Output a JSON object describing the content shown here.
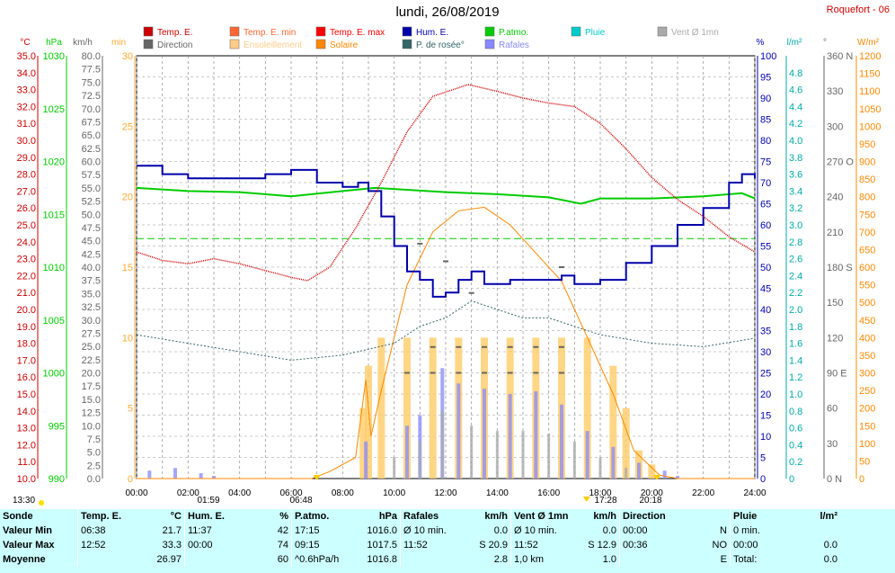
{
  "header": {
    "title": "lundi, 26/08/2019",
    "station": "Roquefort - 06"
  },
  "legend": [
    {
      "label": "Temp. E.",
      "color": "#cc0000"
    },
    {
      "label": "Temp. E. min",
      "color": "#ff6633"
    },
    {
      "label": "Temp. E. max",
      "color": "#ff0000"
    },
    {
      "label": "Hum. E.",
      "color": "#0000aa"
    },
    {
      "label": "P.atmo.",
      "color": "#00cc00"
    },
    {
      "label": "Pluie",
      "color": "#00cccc"
    },
    {
      "label": "Vent Ø 1mn",
      "color": "#aaaaaa"
    },
    {
      "label": "Direction",
      "color": "#666666"
    },
    {
      "label": "Ensoleillement",
      "color": "#ffcc88"
    },
    {
      "label": "Solaire",
      "color": "#ff8800"
    },
    {
      "label": "P. de rosée°",
      "color": "#336666"
    },
    {
      "label": "Rafales",
      "color": "#8888ff"
    }
  ],
  "axes_units": {
    "temp": "°C",
    "pressure": "hPa",
    "wind": "km/h",
    "sun_min": "min",
    "humidity": "%",
    "rain": "l/m²",
    "direction": "°",
    "solar": "W/m²"
  },
  "colors": {
    "temp": "#cc0000",
    "pressure": "#00cc00",
    "wind": "#888888",
    "sun_min": "#ffcc66",
    "humidity": "#0000aa",
    "rain": "#00cccc",
    "direction": "#666666",
    "solar": "#ff8800",
    "dew": "#336666",
    "gust": "#8888ff"
  },
  "sun_events": {
    "sunrise": "06:48",
    "sunset": "20:18",
    "noon": "13:30",
    "day_start": "01:59",
    "solar_noon": "17:28"
  },
  "chart_data": {
    "type": "line",
    "x_range_hours": [
      0,
      24
    ],
    "x_ticks": [
      "00:00",
      "02:00",
      "04:00",
      "06:00",
      "08:00",
      "10:00",
      "12:00",
      "14:00",
      "16:00",
      "18:00",
      "20:00",
      "22:00",
      "24:00"
    ],
    "ylim": {
      "temp": [
        10,
        35
      ],
      "pressure": [
        990,
        1030
      ],
      "wind": [
        0,
        80
      ],
      "sun_min": [
        0,
        30
      ],
      "humidity": [
        0,
        100
      ],
      "rain": [
        0,
        5
      ],
      "direction": [
        0,
        360
      ],
      "solar": [
        0,
        1200
      ]
    },
    "y_ticks": {
      "temp": [
        "10.0",
        "11.0",
        "12.0",
        "13.0",
        "14.0",
        "15.0",
        "16.0",
        "17.0",
        "18.0",
        "19.0",
        "20.0",
        "21.0",
        "22.0",
        "23.0",
        "24.0",
        "25.0",
        "26.0",
        "27.0",
        "28.0",
        "29.0",
        "30.0",
        "31.0",
        "32.0",
        "33.0",
        "34.0",
        "35.0"
      ],
      "pressure": [
        "990",
        "995",
        "1000",
        "1005",
        "1010",
        "1015",
        "1020",
        "1025",
        "1030"
      ],
      "wind": [
        "0.0",
        "2.5",
        "5.0",
        "7.5",
        "10.0",
        "12.5",
        "15.0",
        "17.5",
        "20.0",
        "22.5",
        "25.0",
        "27.5",
        "30.0",
        "32.5",
        "35.0",
        "37.5",
        "40.0",
        "42.5",
        "45.0",
        "47.5",
        "50.0",
        "52.5",
        "55.0",
        "57.5",
        "60.0",
        "62.5",
        "65.0",
        "67.5",
        "70.0",
        "72.5",
        "75.0",
        "77.5",
        "80.0"
      ],
      "sun_min": [
        "0",
        "5",
        "10",
        "15",
        "20",
        "25",
        "30"
      ],
      "humidity": [
        "0",
        "5",
        "10",
        "15",
        "20",
        "25",
        "30",
        "35",
        "40",
        "45",
        "50",
        "55",
        "60",
        "65",
        "70",
        "75",
        "80",
        "85",
        "90",
        "95",
        "100"
      ],
      "rain": [
        "0",
        "0.2",
        "0.4",
        "0.6",
        "0.8",
        "1.0",
        "1.2",
        "1.4",
        "1.6",
        "1.8",
        "2.0",
        "2.2",
        "2.4",
        "2.6",
        "2.8",
        "3.0",
        "3.2",
        "3.4",
        "3.6",
        "3.8",
        "4.0",
        "4.2",
        "4.4",
        "4.6",
        "4.8"
      ],
      "direction": [
        "0 N",
        "30",
        "60",
        "90 E",
        "120",
        "150",
        "180 S",
        "210",
        "240",
        "270 O",
        "300",
        "330",
        "360 N"
      ],
      "solar": [
        "0",
        "50",
        "100",
        "150",
        "200",
        "250",
        "300",
        "350",
        "400",
        "450",
        "500",
        "550",
        "600",
        "650",
        "700",
        "750",
        "800",
        "850",
        "900",
        "950",
        "1000",
        "1050",
        "1100",
        "1150",
        "1200"
      ]
    },
    "series": [
      {
        "name": "Temp. E.",
        "unit": "°C",
        "points": [
          [
            0,
            23.4
          ],
          [
            1,
            22.9
          ],
          [
            2,
            22.7
          ],
          [
            3,
            23.0
          ],
          [
            4,
            22.7
          ],
          [
            5,
            22.3
          ],
          [
            6,
            21.9
          ],
          [
            6.63,
            21.7
          ],
          [
            7.5,
            22.5
          ],
          [
            8.5,
            24.8
          ],
          [
            9.5,
            27.5
          ],
          [
            10.5,
            30.5
          ],
          [
            11.5,
            32.6
          ],
          [
            12.87,
            33.3
          ],
          [
            14,
            32.9
          ],
          [
            15,
            32.5
          ],
          [
            16,
            32.2
          ],
          [
            17,
            32.0
          ],
          [
            18,
            31.0
          ],
          [
            19,
            29.5
          ],
          [
            20,
            27.8
          ],
          [
            21,
            26.5
          ],
          [
            22,
            25.5
          ],
          [
            23,
            24.3
          ],
          [
            24,
            23.4
          ]
        ]
      },
      {
        "name": "Hum. E.",
        "unit": "%",
        "points": [
          [
            0,
            74
          ],
          [
            1,
            72
          ],
          [
            2,
            71
          ],
          [
            3,
            71
          ],
          [
            4,
            71
          ],
          [
            5,
            72
          ],
          [
            6,
            73
          ],
          [
            7,
            70
          ],
          [
            8,
            69
          ],
          [
            8.6,
            70
          ],
          [
            9,
            68
          ],
          [
            9.5,
            62
          ],
          [
            10,
            55
          ],
          [
            10.5,
            49
          ],
          [
            11,
            47
          ],
          [
            11.5,
            43
          ],
          [
            12,
            44
          ],
          [
            12.5,
            47
          ],
          [
            13,
            49
          ],
          [
            13.5,
            46
          ],
          [
            14,
            46
          ],
          [
            14.5,
            47
          ],
          [
            15,
            47
          ],
          [
            15.5,
            47
          ],
          [
            16,
            47
          ],
          [
            16.5,
            48
          ],
          [
            17,
            46
          ],
          [
            17.5,
            46
          ],
          [
            18,
            47
          ],
          [
            19,
            51
          ],
          [
            20,
            55
          ],
          [
            21,
            60
          ],
          [
            22,
            64
          ],
          [
            23,
            70
          ],
          [
            23.5,
            72
          ],
          [
            24,
            71
          ]
        ]
      },
      {
        "name": "P.atmo.",
        "unit": "hPa",
        "points": [
          [
            0,
            1017.5
          ],
          [
            2,
            1017.2
          ],
          [
            4,
            1017.1
          ],
          [
            6,
            1016.7
          ],
          [
            8,
            1017.2
          ],
          [
            9.25,
            1017.5
          ],
          [
            10,
            1017.4
          ],
          [
            12,
            1017.1
          ],
          [
            14,
            1016.9
          ],
          [
            16,
            1016.6
          ],
          [
            17.25,
            1016.0
          ],
          [
            18,
            1016.5
          ],
          [
            20,
            1016.5
          ],
          [
            22,
            1016.7
          ],
          [
            23.5,
            1017.0
          ],
          [
            24,
            1016.5
          ]
        ]
      },
      {
        "name": "P. de rosée°",
        "unit": "°C",
        "points": [
          [
            0,
            18.5
          ],
          [
            2,
            18.0
          ],
          [
            4,
            17.5
          ],
          [
            6,
            17.0
          ],
          [
            8,
            17.3
          ],
          [
            10,
            18.0
          ],
          [
            11,
            19.0
          ],
          [
            12,
            19.5
          ],
          [
            13,
            20.5
          ],
          [
            14,
            20.0
          ],
          [
            15,
            19.5
          ],
          [
            16,
            19.5
          ],
          [
            17,
            19.0
          ],
          [
            18,
            18.5
          ],
          [
            20,
            18.0
          ],
          [
            22,
            17.8
          ],
          [
            24,
            18.3
          ]
        ]
      },
      {
        "name": "Solaire",
        "unit": "W/m²",
        "points": [
          [
            0,
            0
          ],
          [
            6.8,
            0
          ],
          [
            7.5,
            20
          ],
          [
            8.5,
            60
          ],
          [
            8.9,
            280
          ],
          [
            9.1,
            120
          ],
          [
            9.5,
            250
          ],
          [
            10.5,
            550
          ],
          [
            11.5,
            700
          ],
          [
            12.5,
            760
          ],
          [
            13.5,
            770
          ],
          [
            14.5,
            720
          ],
          [
            15.5,
            640
          ],
          [
            16.5,
            560
          ],
          [
            17.5,
            400
          ],
          [
            18.5,
            240
          ],
          [
            19.3,
            80
          ],
          [
            20.3,
            10
          ],
          [
            21,
            0
          ],
          [
            24,
            0
          ]
        ]
      },
      {
        "name": "Rafales",
        "unit": "km/h",
        "points": [
          [
            0.5,
            1.5
          ],
          [
            1.5,
            2.0
          ],
          [
            2.5,
            1.0
          ],
          [
            3.0,
            0.5
          ],
          [
            8.9,
            7.0
          ],
          [
            10.5,
            10.0
          ],
          [
            11.0,
            12.0
          ],
          [
            11.87,
            20.9
          ],
          [
            12.5,
            18.0
          ],
          [
            13.5,
            17.0
          ],
          [
            14.5,
            16.0
          ],
          [
            15.5,
            16.5
          ],
          [
            16.5,
            14.0
          ],
          [
            17.5,
            9.0
          ],
          [
            18.5,
            6.0
          ],
          [
            19.5,
            3.0
          ],
          [
            20.5,
            1.5
          ],
          [
            21.0,
            0.5
          ]
        ]
      },
      {
        "name": "Vent Ø 1mn",
        "unit": "km/h",
        "points": [
          [
            10,
            4.0
          ],
          [
            11,
            7.0
          ],
          [
            11.87,
            12.9
          ],
          [
            13,
            10.0
          ],
          [
            14,
            9.0
          ],
          [
            15,
            9.0
          ],
          [
            16,
            8.5
          ],
          [
            17,
            7.0
          ],
          [
            18,
            4.0
          ],
          [
            19,
            2.0
          ]
        ]
      },
      {
        "name": "Direction",
        "unit": "°",
        "points": [
          [
            10.5,
            90
          ],
          [
            11.5,
            90
          ],
          [
            12.5,
            90
          ],
          [
            13.5,
            90
          ],
          [
            14.5,
            90
          ],
          [
            15.5,
            90
          ],
          [
            16.5,
            90
          ],
          [
            11.5,
            112
          ],
          [
            12.5,
            112
          ],
          [
            13.5,
            112
          ],
          [
            14.5,
            112
          ],
          [
            15.5,
            112
          ],
          [
            16.5,
            112
          ],
          [
            11.0,
            200
          ],
          [
            12.0,
            185
          ],
          [
            13.0,
            158
          ],
          [
            16.5,
            180
          ]
        ]
      },
      {
        "name": "Ensoleillement",
        "unit": "min",
        "points": [
          [
            8.8,
            5
          ],
          [
            9.0,
            8
          ],
          [
            9.5,
            10
          ],
          [
            10.5,
            10
          ],
          [
            11.5,
            10
          ],
          [
            12.5,
            10
          ],
          [
            13.5,
            10
          ],
          [
            14.5,
            10
          ],
          [
            15.5,
            10
          ],
          [
            16.5,
            10
          ],
          [
            17.5,
            10
          ],
          [
            18.5,
            8
          ],
          [
            19.0,
            5
          ],
          [
            19.5,
            2
          ],
          [
            20.0,
            1
          ]
        ]
      }
    ]
  },
  "stats": {
    "columns": [
      {
        "name": "Sonde",
        "unit": ""
      },
      {
        "name": "Temp. E.",
        "unit": "°C"
      },
      {
        "name": "Hum. E.",
        "unit": "%"
      },
      {
        "name": "P.atmo.",
        "unit": "hPa"
      },
      {
        "name": "Rafales",
        "unit": "km/h"
      },
      {
        "name": "Vent Ø 1mn",
        "unit": "km/h"
      },
      {
        "name": "Direction",
        "unit": ""
      },
      {
        "name": "Pluie",
        "unit": "l/m²"
      }
    ],
    "min": {
      "label": "Valeur Min",
      "temp": [
        "06:38",
        "21.7"
      ],
      "hum": [
        "11:37",
        "42"
      ],
      "press": [
        "17:15",
        "1016.0"
      ],
      "gust": [
        "Ø 10 min.",
        "0.0"
      ],
      "wind": [
        "Ø 10 min.",
        "0.0"
      ],
      "dir": [
        "00:00",
        "N"
      ],
      "rain": [
        "0 min.",
        ""
      ]
    },
    "max": {
      "label": "Valeur Max",
      "temp": [
        "12:52",
        "33.3"
      ],
      "hum": [
        "00:00",
        "74"
      ],
      "press": [
        "09:15",
        "1017.5"
      ],
      "gust": [
        "11:52",
        "S 20.9"
      ],
      "wind": [
        "11:52",
        "S 12.9"
      ],
      "dir": [
        "00:36",
        "NO"
      ],
      "rain": [
        "00:00",
        "0.0"
      ]
    },
    "avg": {
      "label": "Moyenne",
      "temp": [
        "",
        "26.97"
      ],
      "hum": [
        "",
        "60"
      ],
      "press": [
        "^0.6hPa/h",
        "1016.8"
      ],
      "gust": [
        "",
        "2.8"
      ],
      "wind": [
        "1,0 km",
        "1.0"
      ],
      "dir": [
        "",
        "E"
      ],
      "rain": [
        "Total:",
        "0.0"
      ]
    }
  }
}
